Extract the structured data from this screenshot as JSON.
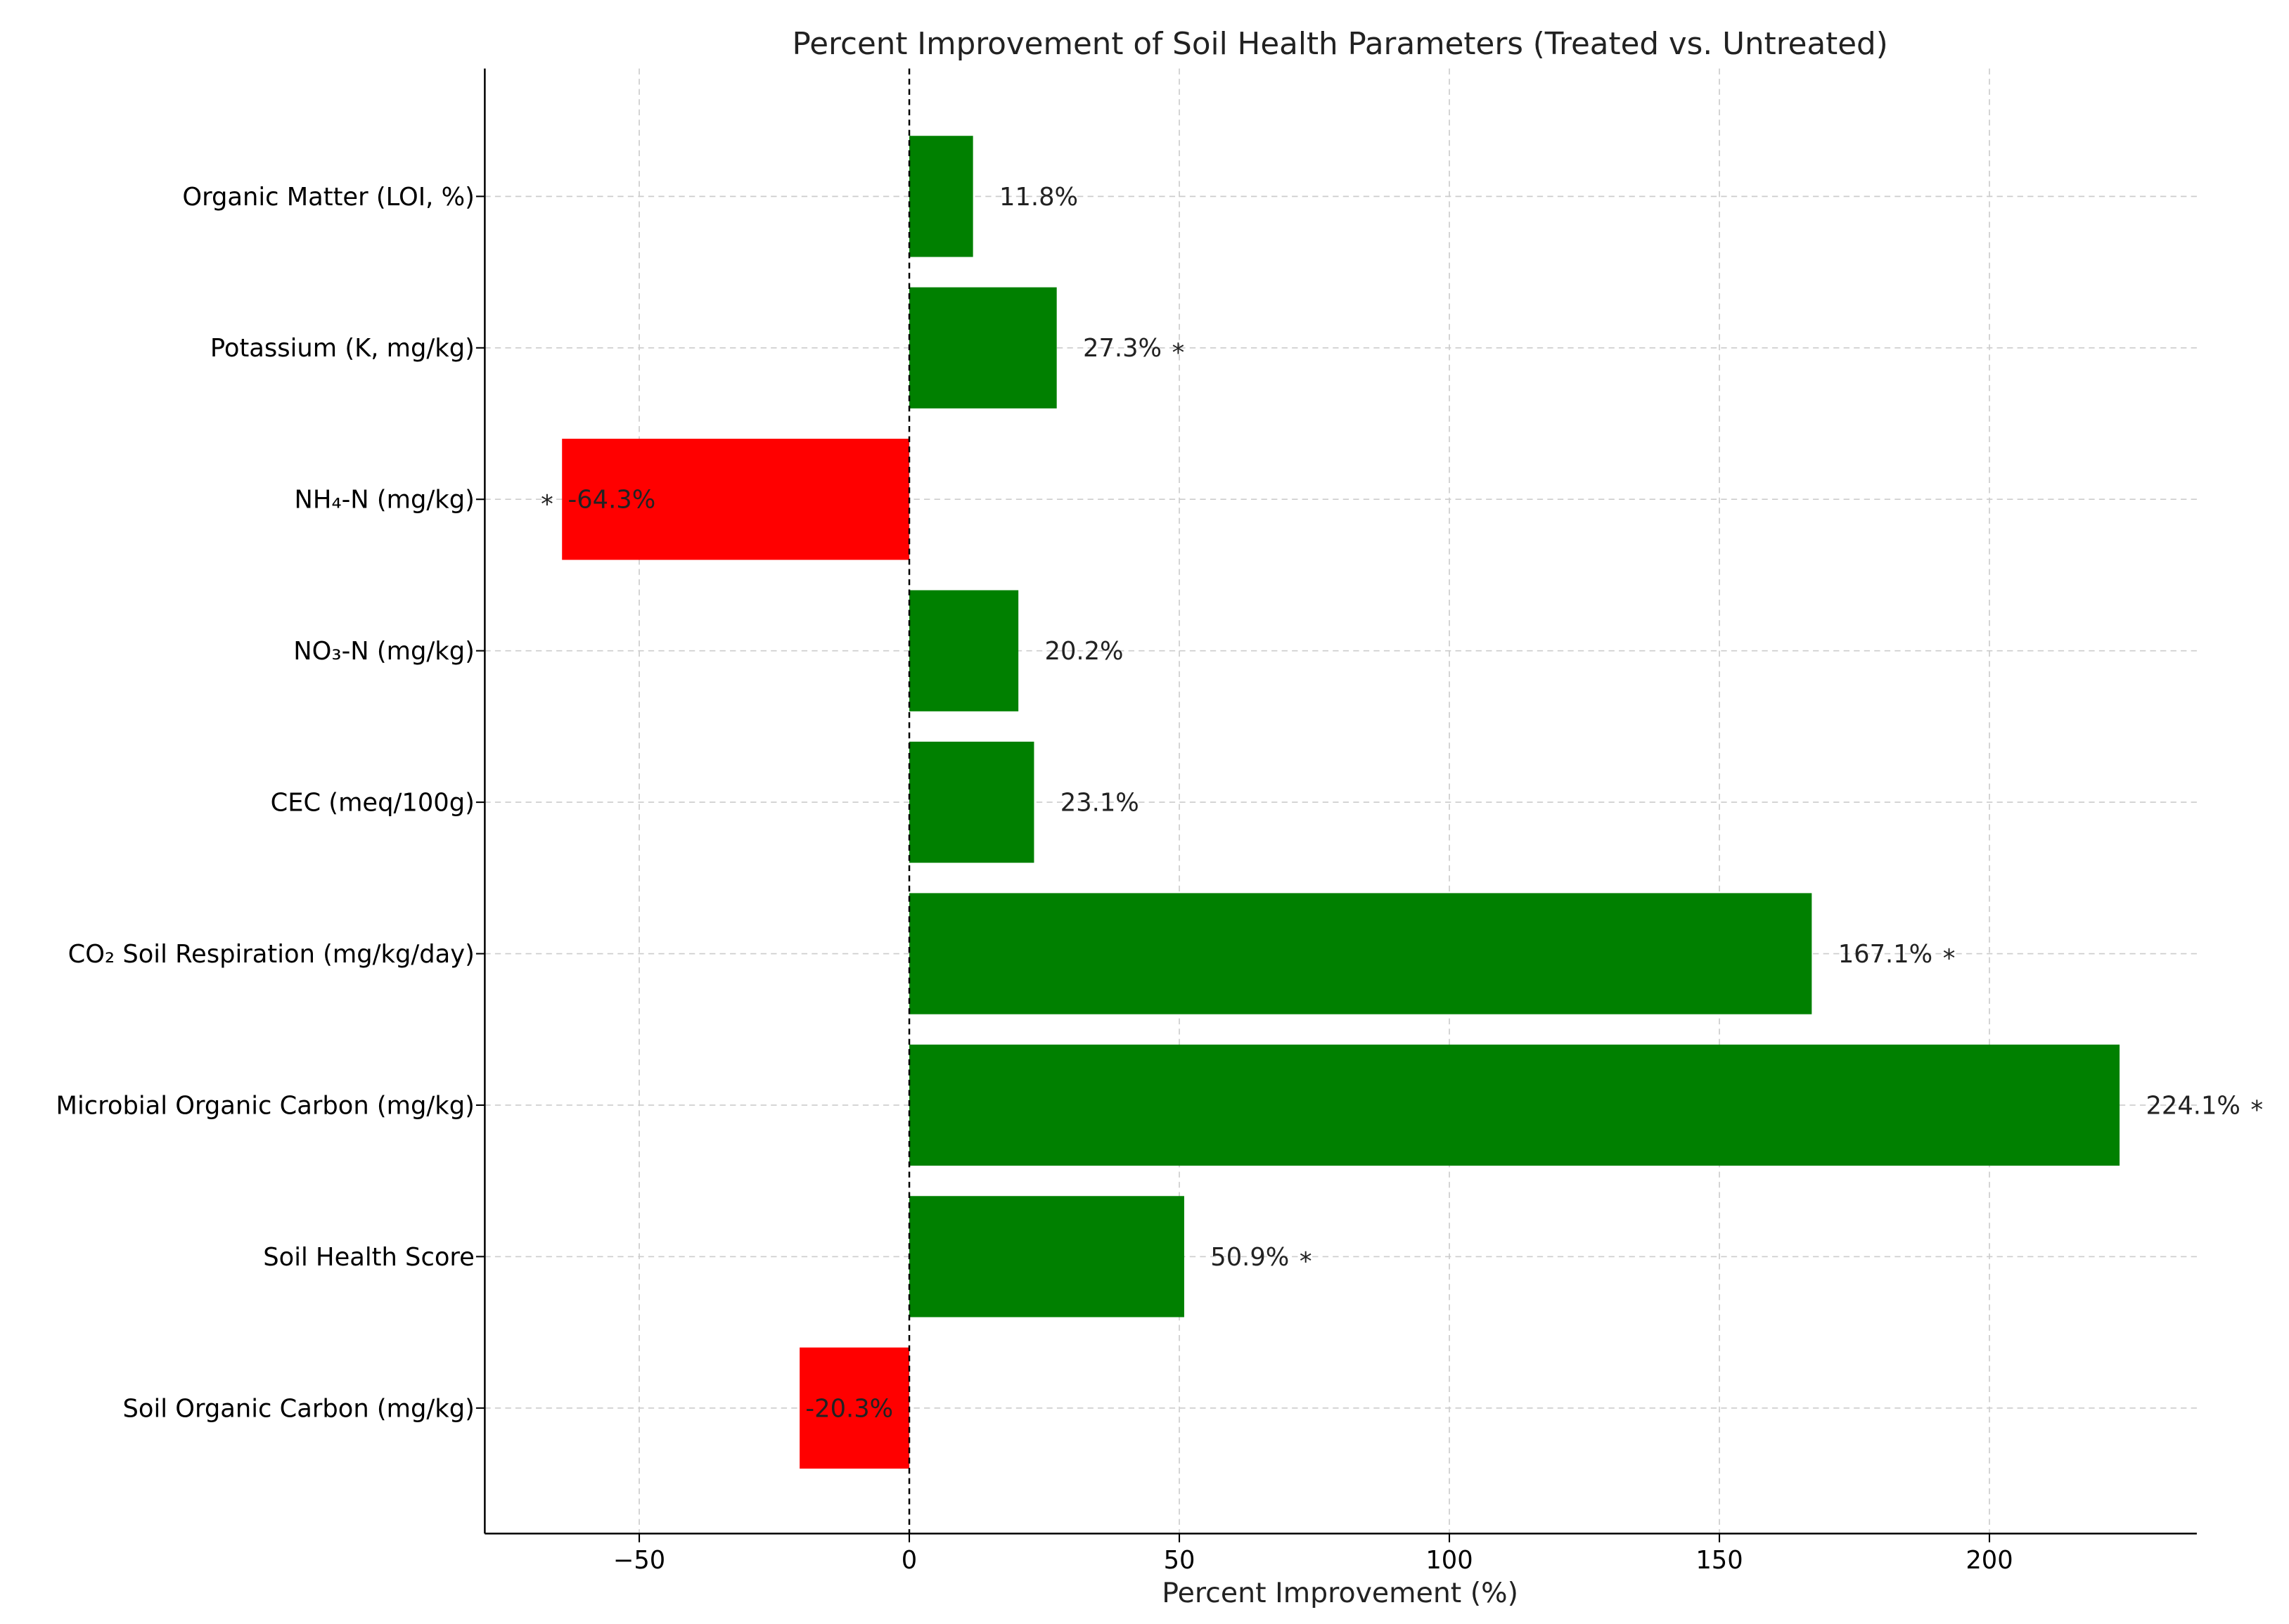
{
  "chart_data": {
    "type": "bar",
    "orientation": "horizontal",
    "title": "Percent Improvement of Soil Health Parameters (Treated vs. Untreated)",
    "xlabel": "Percent Improvement (%)",
    "ylabel": "",
    "xlim": [
      -78.6,
      238.4
    ],
    "xticks": [
      -50,
      0,
      50,
      100,
      150,
      200
    ],
    "xtick_labels": [
      "−50",
      "0",
      "50",
      "100",
      "150",
      "200"
    ],
    "grid": true,
    "zero_line": "dashed",
    "colors": {
      "positive": "#008000",
      "negative": "#ff0000"
    },
    "categories": [
      "Soil Organic Carbon (mg/kg)",
      "Soil Health Score",
      "Microbial Organic Carbon (mg/kg)",
      "CO₂ Soil Respiration (mg/kg/day)",
      "CEC (meq/100g)",
      "NO₃-N (mg/kg)",
      "NH₄-N (mg/kg)",
      "Potassium (K, mg/kg)",
      "Organic Matter (LOI, %)"
    ],
    "values": [
      -20.3,
      50.9,
      224.1,
      167.1,
      23.1,
      20.2,
      -64.3,
      27.3,
      11.8
    ],
    "value_labels": [
      "-20.3%",
      "50.9%",
      "224.1%",
      "167.1%",
      "23.1%",
      "20.2%",
      "-64.3%",
      "27.3%",
      "11.8%"
    ],
    "significant": [
      false,
      true,
      true,
      true,
      false,
      false,
      true,
      true,
      false
    ],
    "significance_marker": "*"
  }
}
